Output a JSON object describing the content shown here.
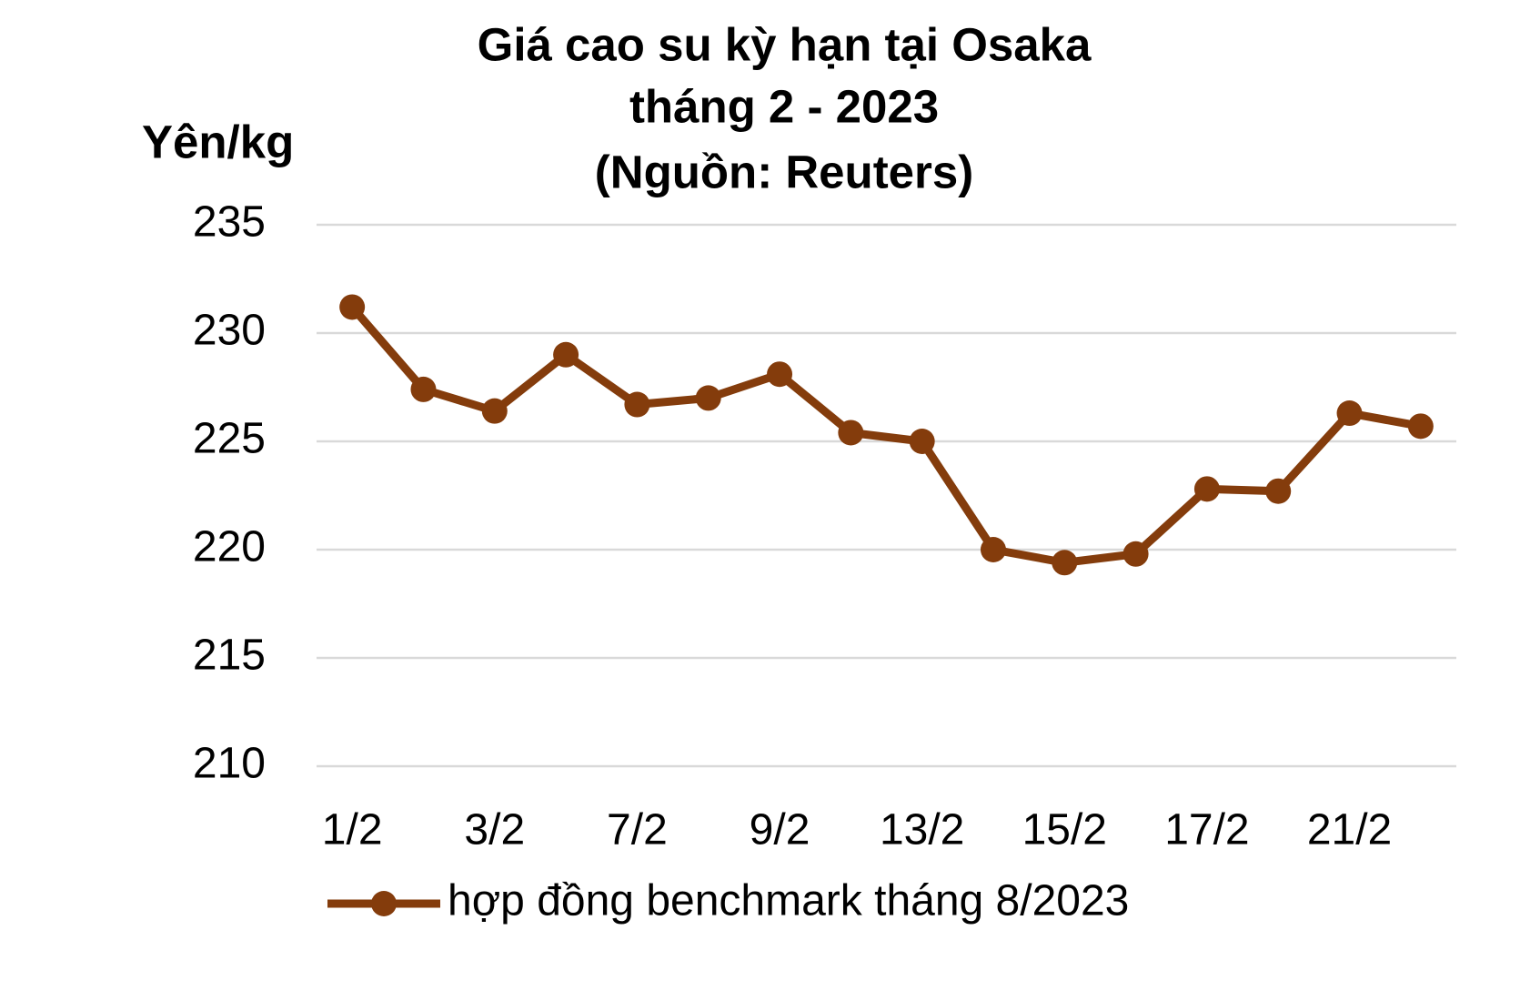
{
  "chart_data": {
    "type": "line",
    "title": "Giá cao su kỳ hạn tại Osaka",
    "subtitle": "tháng 2 - 2023",
    "source": "(Nguồn: Reuters)",
    "y_label": "Yên/kg",
    "categories": [
      "1/2",
      null,
      "3/2",
      null,
      "7/2",
      null,
      "9/2",
      null,
      "13/2",
      null,
      "15/2",
      null,
      "17/2",
      null,
      "21/2",
      null
    ],
    "series": [
      {
        "name": "hợp đồng benchmark tháng 8/2023",
        "color": "#843c0c",
        "values": [
          231.2,
          227.4,
          226.4,
          229.0,
          226.7,
          227.0,
          228.1,
          225.4,
          225.0,
          220.0,
          219.4,
          219.8,
          222.8,
          222.7,
          226.3,
          225.7
        ]
      }
    ],
    "ylim": [
      210,
      235
    ],
    "yticks": [
      210,
      215,
      220,
      225,
      230,
      235
    ],
    "grid": true,
    "legend": "bottom"
  }
}
